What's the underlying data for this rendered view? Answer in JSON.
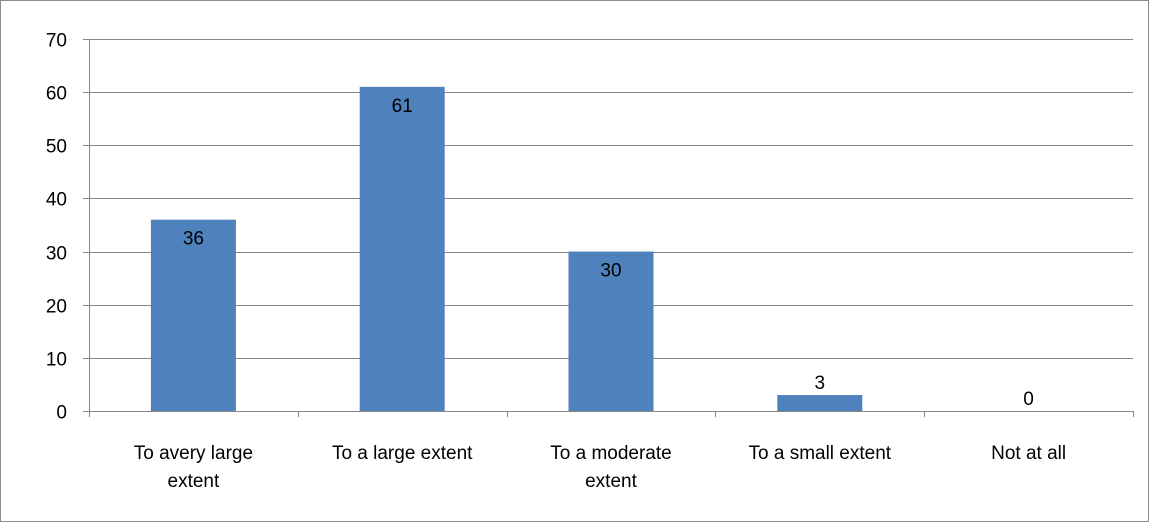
{
  "chart_data": {
    "type": "bar",
    "categories": [
      [
        "To avery large",
        "extent"
      ],
      [
        "To a large extent"
      ],
      [
        "To a moderate",
        "extent"
      ],
      [
        "To a small extent"
      ],
      [
        "Not at all"
      ]
    ],
    "values": [
      36,
      61,
      30,
      3,
      0
    ],
    "data_labels": [
      "36",
      "61",
      "30",
      "3",
      "0"
    ],
    "title": "",
    "xlabel": "",
    "ylabel": "",
    "ylim": [
      0,
      70
    ],
    "yticks": [
      0,
      10,
      20,
      30,
      40,
      50,
      60,
      70
    ],
    "grid": true,
    "legend": "none",
    "bar_color": "#4f81bd",
    "grid_color": "#868686"
  }
}
